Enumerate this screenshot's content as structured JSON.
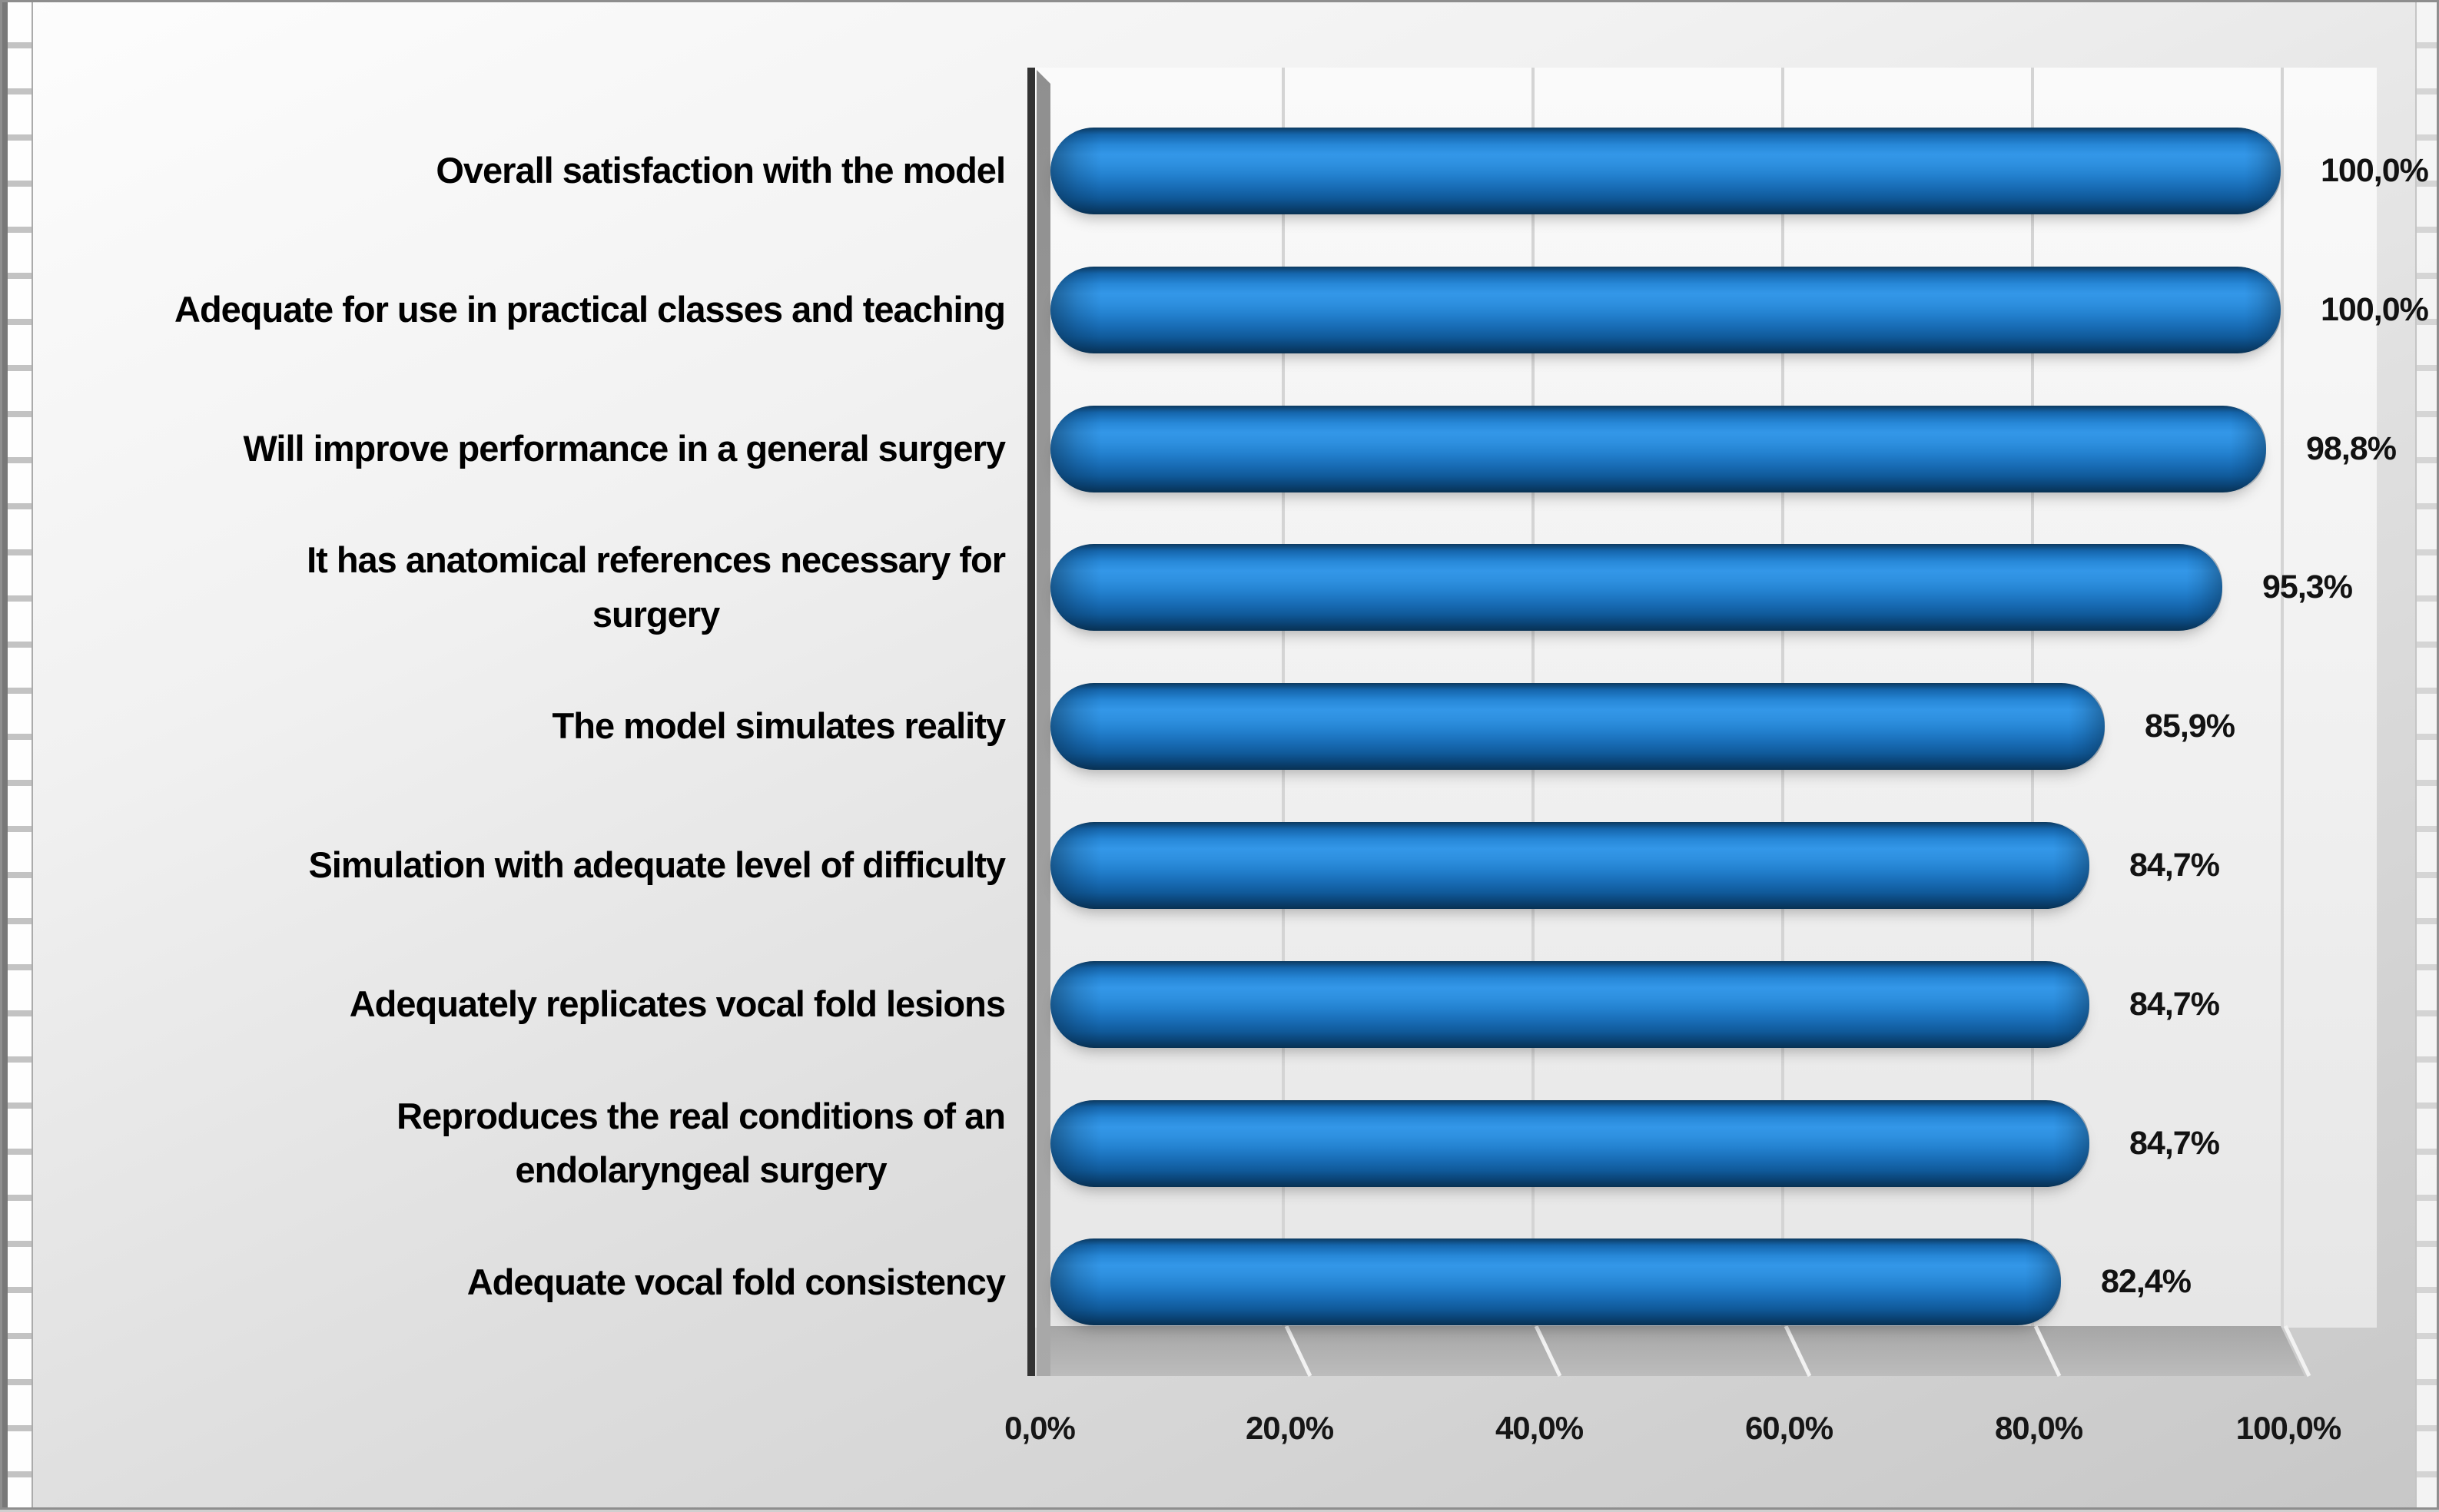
{
  "figure": {
    "description": "3D horizontal cylinder bar chart of survey agreement percentages for a laryngeal surgery training model"
  },
  "chart_data": {
    "type": "bar",
    "orientation": "horizontal",
    "style": "3d-cylinder",
    "title": "",
    "xlabel": "",
    "ylabel": "",
    "categories": [
      "Overall satisfaction with the model",
      "Adequate for use in practical classes and teaching",
      "Will improve performance in a general surgery",
      "It has anatomical references necessary for\nsurgery",
      "The model simulates reality",
      "Simulation with adequate level of difficulty",
      "Adequately replicates vocal fold lesions",
      "Reproduces the real conditions of an\nendolaryngeal surgery",
      "Adequate vocal fold consistency"
    ],
    "values": [
      100.0,
      100.0,
      98.8,
      95.3,
      85.9,
      84.7,
      84.7,
      84.7,
      82.4
    ],
    "value_labels": [
      "100,0%",
      "100,0%",
      "98,8%",
      "95,3%",
      "85,9%",
      "84,7%",
      "84,7%",
      "84,7%",
      "82,4%"
    ],
    "x_tick_labels": [
      "0,0%",
      "20,0%",
      "40,0%",
      "60,0%",
      "80,0%",
      "100,0%"
    ],
    "xlim": [
      0,
      100
    ],
    "x_tick_step": 20,
    "grid": true,
    "legend": false,
    "bar_color": "#1f7fd0",
    "bar_color_light": "#3397e8",
    "bar_color_dark": "#0a3a63",
    "axis_color": "#333333",
    "wall_color": "#9a9a9a",
    "floor_color": "#aeaeae",
    "floor_gridline_color": "#f2f2f2",
    "text_color": "#000000"
  }
}
